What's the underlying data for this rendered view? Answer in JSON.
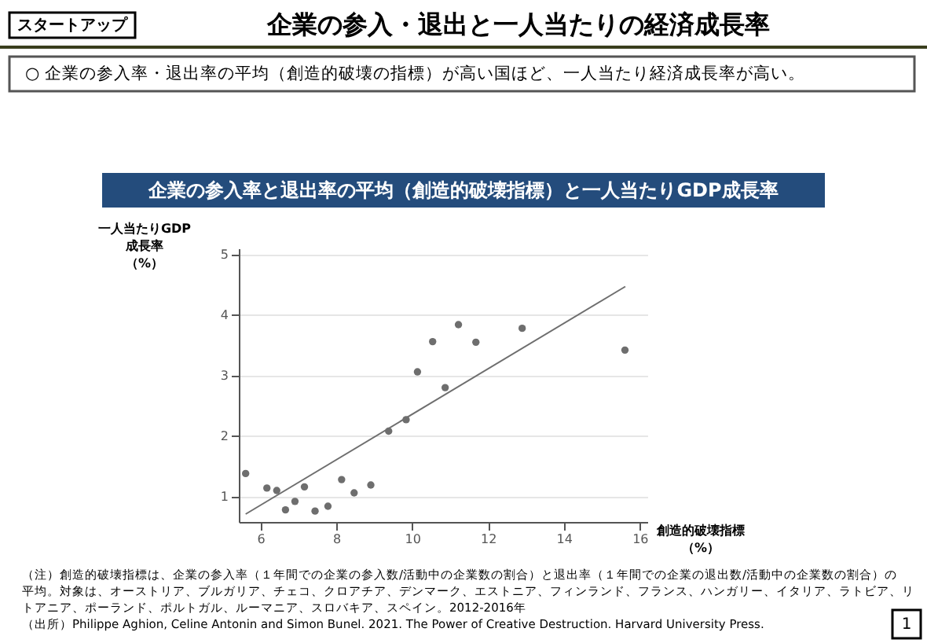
{
  "chart_data": {
    "type": "scatter",
    "title": "企業の参入率と退出率の平均（創造的破壊指標）と一人当たりGDP成長率",
    "subtitle": "○ 企業の参入率・退出率の平均（創造的破壊の指標）が高い国ほど、一人当たり経済成長率が高い。",
    "xlabel": "創造的破壊指標（%）",
    "ylabel": "一人当たりGDP成長率（%）",
    "annotations": [
      "スタートアップ",
      "企業の参入・退出と一人当たりの経済成長率",
      "（注）創造的破壊指標は、企業の参入率（１年間での企業の参入数/活動中の企業数の割合）と退出率（１年間での企業の退出数/活動中の企業数の割合）の平均。対象は、オーストリア、ブルガリア、チェコ、クロアチア、デンマーク、エストニア、フィンランド、フランス、ハンガリー、イタリア、ラトビア、リトアニア、ポーランド、ポルトガル、ルーマニア、スロバキア、スペイン。2012-2016年",
      "（出所）Philippe Aghion, Celine Antonin and Simon Bunel. 2021. The Power of Creative Destruction. Harvard University Press.",
      "1"
    ],
    "marker": "circle",
    "grid": "y",
    "xlim": [
      5.43,
      16.2
    ],
    "xticks": [
      6,
      8,
      10,
      12,
      14,
      16
    ],
    "ylim": [
      0.58,
      5.1
    ],
    "yticks": [
      1,
      2,
      3,
      4,
      5
    ],
    "series": [
      {
        "color": "#6e6e6e",
        "x": [
          5.61,
          6.17,
          6.43,
          6.66,
          6.91,
          7.16,
          7.44,
          7.78,
          8.14,
          8.47,
          8.91,
          9.38,
          9.84,
          10.14,
          10.54,
          10.87,
          11.22,
          11.68,
          12.9,
          15.61
        ],
        "values": [
          1.38,
          1.14,
          1.1,
          0.78,
          0.92,
          1.16,
          0.76,
          0.84,
          1.28,
          1.06,
          1.19,
          2.08,
          2.27,
          3.06,
          3.56,
          2.8,
          3.84,
          3.55,
          3.78,
          3.42
        ]
      },
      {
        "type": "line",
        "color": "#6e6e6e",
        "line_style": "solid",
        "marker": "none",
        "x": [
          5.61,
          15.62
        ],
        "values": [
          0.71,
          4.47
        ]
      }
    ]
  }
}
